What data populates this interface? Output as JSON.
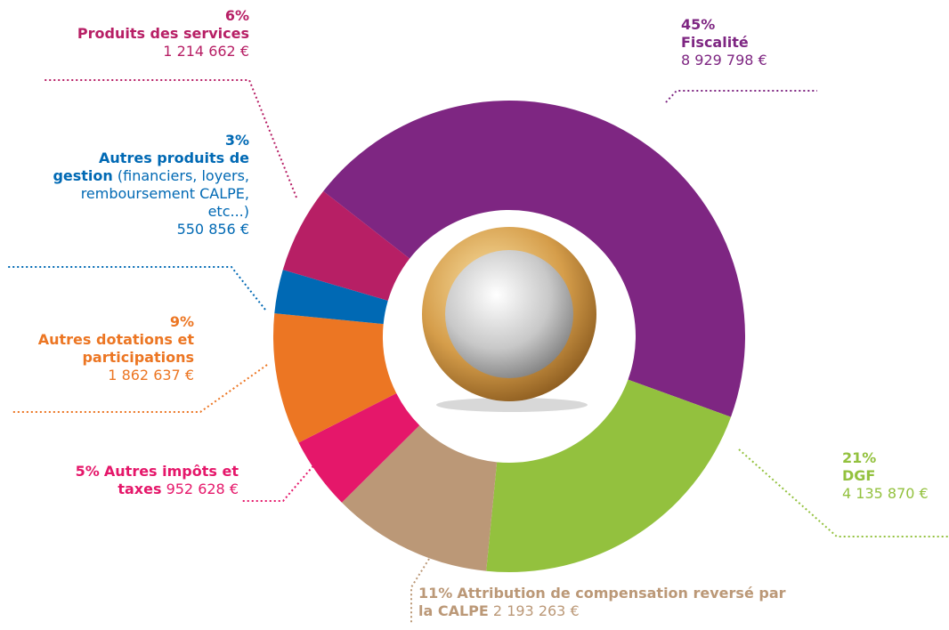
{
  "chart_data": {
    "type": "donut",
    "categories": [
      "Fiscalité",
      "DGF",
      "Attribution de compensation reversé par la CALPE",
      "Autres impôts et taxes",
      "Autres dotations et participations",
      "Autres produits de gestion",
      "Produits des services"
    ],
    "category_notes": [
      null,
      null,
      null,
      null,
      null,
      "(financiers, loyers, remboursement CALPE, etc...)",
      null
    ],
    "values": [
      45,
      21,
      11,
      5,
      9,
      3,
      6
    ],
    "value_labels": [
      "45%",
      "21%",
      "11%",
      "5%",
      "9%",
      "3%",
      "6%"
    ],
    "amounts": [
      "8 929 798 €",
      "4 135 870 €",
      "2 193 263 €",
      "952 628 €",
      "1 862 637 €",
      "550 856 €",
      "1 214 662 €"
    ],
    "colors": [
      "#7e2682",
      "#93c13e",
      "#bb9877",
      "#e5176a",
      "#ec7623",
      "#0069b4",
      "#b71f65"
    ]
  }
}
